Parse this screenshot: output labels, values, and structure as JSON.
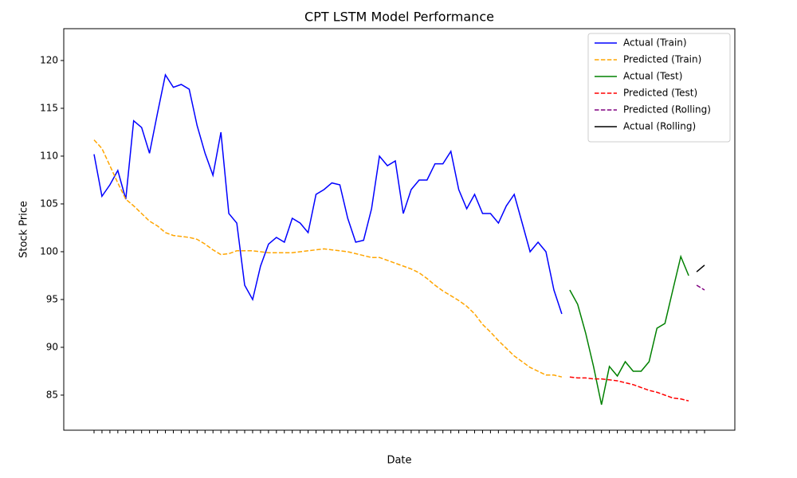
{
  "chart_data": {
    "type": "line",
    "title": "CPT LSTM Model Performance",
    "x_label": "Date",
    "y_label": "Stock Price",
    "categories": [
      null,
      null,
      null,
      null,
      null,
      null,
      null,
      null,
      null,
      null,
      null,
      null,
      null,
      null,
      null,
      null,
      null,
      null,
      null,
      null,
      null,
      null,
      null,
      null,
      null,
      null,
      null,
      null,
      null,
      null,
      null,
      null,
      null,
      null,
      null,
      null,
      null,
      null,
      null,
      null,
      null,
      null,
      null,
      null,
      null,
      null,
      null,
      null,
      null,
      null,
      null,
      null,
      null,
      null,
      null,
      null,
      null,
      null,
      null,
      null,
      null,
      null,
      null,
      null,
      null,
      null,
      null,
      null,
      null,
      null,
      null,
      null,
      null,
      null,
      null,
      null,
      null,
      null
    ],
    "ylim": [
      81.33,
      123.33
    ],
    "yticks": [
      85,
      90,
      95,
      100,
      105,
      110,
      115,
      120
    ],
    "grid": false,
    "legend": "upper right",
    "series": [
      {
        "name": "Actual (Train)",
        "color": "#0000ff",
        "dashed": false,
        "values": [
          110.2,
          105.8,
          107.0,
          108.5,
          105.5,
          113.7,
          113.0,
          110.3,
          114.5,
          118.5,
          117.2,
          117.5,
          117.0,
          113.2,
          110.3,
          108.0,
          112.5,
          104.0,
          103.0,
          96.5,
          95.0,
          98.5,
          100.8,
          101.5,
          101.0,
          103.5,
          103.0,
          102.0,
          106.0,
          106.5,
          107.2,
          107.0,
          103.5,
          101.0,
          101.2,
          104.5,
          110.0,
          109.0,
          109.5,
          104.0,
          106.5,
          107.5,
          107.5,
          109.2,
          109.2,
          110.5,
          106.5,
          104.5,
          106.0,
          104.0,
          104.0,
          103.0,
          104.8,
          106.0,
          103.0,
          100.0,
          101.0,
          100.0,
          96.0,
          93.5,
          null,
          null,
          null,
          null,
          null,
          null,
          null,
          null,
          null,
          null,
          null,
          null,
          null,
          null,
          null,
          null,
          null,
          null
        ]
      },
      {
        "name": "Predicted (Train)",
        "color": "#ffa500",
        "dashed": true,
        "values": [
          111.7,
          110.8,
          109.0,
          107.2,
          105.5,
          104.8,
          104.0,
          103.2,
          102.7,
          102.0,
          101.7,
          101.6,
          101.5,
          101.3,
          100.8,
          100.2,
          99.7,
          99.8,
          100.1,
          100.1,
          100.1,
          100.0,
          99.9,
          99.9,
          99.9,
          99.9,
          100.0,
          100.1,
          100.2,
          100.3,
          100.2,
          100.1,
          100.0,
          99.8,
          99.6,
          99.4,
          99.4,
          99.1,
          98.8,
          98.5,
          98.2,
          97.8,
          97.2,
          96.5,
          95.9,
          95.4,
          94.9,
          94.3,
          93.5,
          92.4,
          91.6,
          90.7,
          89.9,
          89.1,
          88.5,
          87.9,
          87.5,
          87.1,
          87.1,
          86.9,
          null,
          null,
          null,
          null,
          null,
          null,
          null,
          null,
          null,
          null,
          null,
          null,
          null,
          null,
          null,
          null,
          null,
          null
        ]
      },
      {
        "name": "Actual (Test)",
        "color": "#008000",
        "dashed": false,
        "values": [
          null,
          null,
          null,
          null,
          null,
          null,
          null,
          null,
          null,
          null,
          null,
          null,
          null,
          null,
          null,
          null,
          null,
          null,
          null,
          null,
          null,
          null,
          null,
          null,
          null,
          null,
          null,
          null,
          null,
          null,
          null,
          null,
          null,
          null,
          null,
          null,
          null,
          null,
          null,
          null,
          null,
          null,
          null,
          null,
          null,
          null,
          null,
          null,
          null,
          null,
          null,
          null,
          null,
          null,
          null,
          null,
          null,
          null,
          null,
          null,
          96.0,
          94.5,
          91.5,
          88.0,
          84.0,
          88.0,
          87.0,
          88.5,
          87.5,
          87.5,
          88.5,
          92.0,
          92.5,
          96.0,
          99.5,
          97.5,
          null,
          null
        ]
      },
      {
        "name": "Predicted (Test)",
        "color": "#ff0000",
        "dashed": true,
        "values": [
          null,
          null,
          null,
          null,
          null,
          null,
          null,
          null,
          null,
          null,
          null,
          null,
          null,
          null,
          null,
          null,
          null,
          null,
          null,
          null,
          null,
          null,
          null,
          null,
          null,
          null,
          null,
          null,
          null,
          null,
          null,
          null,
          null,
          null,
          null,
          null,
          null,
          null,
          null,
          null,
          null,
          null,
          null,
          null,
          null,
          null,
          null,
          null,
          null,
          null,
          null,
          null,
          null,
          null,
          null,
          null,
          null,
          null,
          null,
          null,
          86.9,
          86.8,
          86.8,
          86.7,
          86.7,
          86.6,
          86.5,
          86.3,
          86.1,
          85.8,
          85.5,
          85.3,
          85.0,
          84.7,
          84.6,
          84.4,
          null,
          null
        ]
      },
      {
        "name": "Predicted (Rolling)",
        "color": "#800080",
        "dashed": true,
        "values": [
          null,
          null,
          null,
          null,
          null,
          null,
          null,
          null,
          null,
          null,
          null,
          null,
          null,
          null,
          null,
          null,
          null,
          null,
          null,
          null,
          null,
          null,
          null,
          null,
          null,
          null,
          null,
          null,
          null,
          null,
          null,
          null,
          null,
          null,
          null,
          null,
          null,
          null,
          null,
          null,
          null,
          null,
          null,
          null,
          null,
          null,
          null,
          null,
          null,
          null,
          null,
          null,
          null,
          null,
          null,
          null,
          null,
          null,
          null,
          null,
          null,
          null,
          null,
          null,
          null,
          null,
          null,
          null,
          null,
          null,
          null,
          null,
          null,
          null,
          null,
          null,
          96.5,
          96.0
        ]
      },
      {
        "name": "Actual (Rolling)",
        "color": "#000000",
        "dashed": false,
        "values": [
          null,
          null,
          null,
          null,
          null,
          null,
          null,
          null,
          null,
          null,
          null,
          null,
          null,
          null,
          null,
          null,
          null,
          null,
          null,
          null,
          null,
          null,
          null,
          null,
          null,
          null,
          null,
          null,
          null,
          null,
          null,
          null,
          null,
          null,
          null,
          null,
          null,
          null,
          null,
          null,
          null,
          null,
          null,
          null,
          null,
          null,
          null,
          null,
          null,
          null,
          null,
          null,
          null,
          null,
          null,
          null,
          null,
          null,
          null,
          null,
          null,
          null,
          null,
          null,
          null,
          null,
          null,
          null,
          null,
          null,
          null,
          null,
          null,
          null,
          null,
          null,
          97.9,
          98.6
        ]
      }
    ]
  }
}
